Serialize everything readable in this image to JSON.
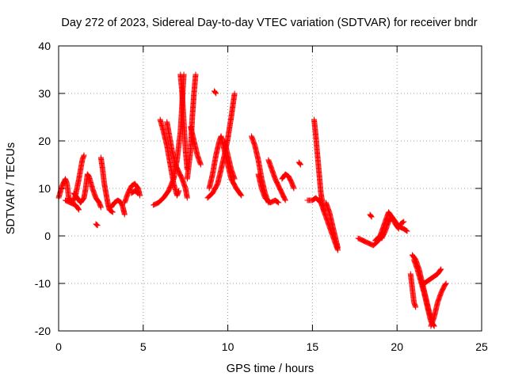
{
  "chart_data": {
    "type": "scatter",
    "title": "Day 272 of 2023, Sidereal Day-to-day VTEC variation (SDTVAR) for receiver bndr",
    "xlabel": "GPS time / hours",
    "ylabel": "SDTVAR / TECUs",
    "xlim": [
      0,
      25
    ],
    "ylim": [
      -20,
      40
    ],
    "xticks": [
      "0",
      "5",
      "10",
      "15",
      "20",
      "25"
    ],
    "yticks": [
      "-20",
      "-10",
      "0",
      "10",
      "20",
      "30",
      "40"
    ],
    "grid": true,
    "marker": "plus",
    "color": "#ff0000",
    "tracks": [
      [
        [
          0.0,
          8
        ],
        [
          0.2,
          10.5
        ],
        [
          0.4,
          12
        ],
        [
          0.5,
          11
        ],
        [
          0.6,
          8
        ],
        [
          0.8,
          7
        ],
        [
          1.0,
          8.5
        ],
        [
          1.2,
          12
        ],
        [
          1.4,
          16
        ],
        [
          1.5,
          17
        ]
      ],
      [
        [
          0.4,
          7.5
        ],
        [
          0.7,
          7
        ],
        [
          1.0,
          6.5
        ],
        [
          1.2,
          5.5
        ]
      ],
      [
        [
          0.9,
          9
        ],
        [
          1.1,
          8
        ],
        [
          1.3,
          7
        ],
        [
          1.5,
          8
        ],
        [
          1.6,
          10
        ],
        [
          1.7,
          13
        ],
        [
          1.8,
          12.5
        ],
        [
          2.0,
          10
        ],
        [
          2.2,
          8
        ],
        [
          2.4,
          7
        ],
        [
          2.5,
          6
        ]
      ],
      [
        [
          2.2,
          2.5
        ],
        [
          2.3,
          2.2
        ]
      ],
      [
        [
          2.5,
          16.5
        ],
        [
          2.6,
          14
        ],
        [
          2.7,
          11
        ],
        [
          2.8,
          9
        ],
        [
          2.9,
          7
        ],
        [
          3.0,
          5.5
        ],
        [
          3.2,
          5
        ]
      ],
      [
        [
          3.1,
          6
        ],
        [
          3.3,
          7
        ],
        [
          3.5,
          7.5
        ],
        [
          3.7,
          7
        ],
        [
          3.8,
          6
        ],
        [
          3.9,
          4.5
        ]
      ],
      [
        [
          3.9,
          7
        ],
        [
          4.1,
          9
        ],
        [
          4.3,
          10.5
        ],
        [
          4.5,
          11
        ],
        [
          4.7,
          10
        ],
        [
          4.8,
          8.5
        ]
      ],
      [
        [
          4.3,
          9
        ],
        [
          4.5,
          9.5
        ],
        [
          4.7,
          9
        ]
      ],
      [
        [
          5.6,
          6.5
        ],
        [
          5.9,
          7
        ],
        [
          6.2,
          8
        ],
        [
          6.5,
          9.5
        ],
        [
          6.8,
          12
        ],
        [
          7.0,
          16
        ],
        [
          7.2,
          22
        ],
        [
          7.3,
          28
        ],
        [
          7.4,
          34
        ]
      ],
      [
        [
          6.0,
          24.5
        ],
        [
          6.2,
          22
        ],
        [
          6.4,
          19
        ],
        [
          6.6,
          15
        ],
        [
          6.8,
          11
        ],
        [
          7.0,
          8.5
        ],
        [
          7.1,
          9.5
        ]
      ],
      [
        [
          6.4,
          24
        ],
        [
          6.5,
          22
        ],
        [
          6.7,
          18
        ],
        [
          6.9,
          15
        ],
        [
          7.1,
          13.5
        ],
        [
          7.3,
          12
        ],
        [
          7.5,
          10
        ],
        [
          7.6,
          8
        ]
      ],
      [
        [
          7.6,
          12
        ],
        [
          7.8,
          18
        ],
        [
          7.9,
          25
        ],
        [
          8.0,
          30
        ],
        [
          8.1,
          34
        ]
      ],
      [
        [
          7.2,
          34
        ],
        [
          7.3,
          30
        ],
        [
          7.4,
          24
        ],
        [
          7.5,
          18
        ],
        [
          7.6,
          14
        ]
      ],
      [
        [
          7.8,
          23
        ],
        [
          8.0,
          20
        ],
        [
          8.2,
          17
        ],
        [
          8.4,
          15
        ]
      ],
      [
        [
          9.2,
          30.5
        ],
        [
          9.3,
          30
        ]
      ],
      [
        [
          8.8,
          8
        ],
        [
          9.1,
          9
        ],
        [
          9.4,
          11
        ],
        [
          9.6,
          14
        ],
        [
          9.8,
          17
        ],
        [
          10.0,
          20.5
        ],
        [
          10.2,
          25
        ],
        [
          10.4,
          30
        ]
      ],
      [
        [
          8.9,
          10
        ],
        [
          9.1,
          13
        ],
        [
          9.3,
          17
        ],
        [
          9.5,
          20
        ],
        [
          9.6,
          21
        ]
      ],
      [
        [
          9.6,
          21
        ],
        [
          9.8,
          18
        ],
        [
          10.0,
          15
        ],
        [
          10.2,
          12
        ],
        [
          10.5,
          10
        ],
        [
          10.8,
          8.5
        ]
      ],
      [
        [
          9.8,
          20
        ],
        [
          10.0,
          17
        ],
        [
          10.2,
          14
        ],
        [
          10.4,
          12
        ]
      ],
      [
        [
          11.4,
          21
        ],
        [
          11.6,
          19
        ],
        [
          11.8,
          16
        ],
        [
          12.0,
          12
        ],
        [
          12.2,
          9
        ],
        [
          12.4,
          7
        ]
      ],
      [
        [
          11.8,
          13
        ],
        [
          12.0,
          10
        ],
        [
          12.2,
          8
        ],
        [
          12.5,
          7
        ],
        [
          12.8,
          7.5
        ],
        [
          13.0,
          7
        ]
      ],
      [
        [
          12.4,
          16
        ],
        [
          12.6,
          14
        ],
        [
          12.8,
          12
        ],
        [
          13.0,
          10.5
        ],
        [
          13.2,
          9
        ],
        [
          13.4,
          7.5
        ]
      ],
      [
        [
          13.2,
          12
        ],
        [
          13.4,
          13
        ],
        [
          13.6,
          12.5
        ],
        [
          13.8,
          11
        ],
        [
          13.9,
          10
        ]
      ],
      [
        [
          14.2,
          15.5
        ],
        [
          14.3,
          15
        ]
      ],
      [
        [
          14.7,
          7.5
        ],
        [
          15.0,
          7.5
        ],
        [
          15.2,
          8
        ],
        [
          15.5,
          7
        ]
      ],
      [
        [
          15.1,
          24.5
        ],
        [
          15.2,
          21
        ],
        [
          15.3,
          17
        ],
        [
          15.4,
          13
        ],
        [
          15.5,
          9
        ],
        [
          15.6,
          7
        ],
        [
          15.7,
          5
        ]
      ],
      [
        [
          15.4,
          8
        ],
        [
          15.6,
          6
        ],
        [
          15.8,
          4
        ],
        [
          16.0,
          2
        ],
        [
          16.2,
          0
        ],
        [
          16.4,
          -2
        ],
        [
          16.5,
          -3
        ]
      ],
      [
        [
          15.8,
          7
        ],
        [
          16.0,
          5
        ],
        [
          16.2,
          2
        ],
        [
          16.4,
          -1
        ],
        [
          16.5,
          -2.5
        ]
      ],
      [
        [
          17.7,
          -0.5
        ],
        [
          18.0,
          -1
        ],
        [
          18.3,
          -1.5
        ],
        [
          18.6,
          -2
        ],
        [
          18.9,
          -1
        ],
        [
          19.1,
          0
        ]
      ],
      [
        [
          18.4,
          4.5
        ],
        [
          18.5,
          4
        ]
      ],
      [
        [
          18.7,
          -1
        ],
        [
          19.0,
          0
        ],
        [
          19.2,
          2
        ],
        [
          19.4,
          4
        ],
        [
          19.5,
          5
        ],
        [
          19.7,
          4
        ],
        [
          19.9,
          2.5
        ],
        [
          20.1,
          1.5
        ]
      ],
      [
        [
          19.1,
          -0.5
        ],
        [
          19.3,
          1
        ],
        [
          19.5,
          3
        ],
        [
          19.7,
          4
        ],
        [
          19.9,
          3
        ],
        [
          20.1,
          2
        ],
        [
          20.4,
          1.5
        ],
        [
          20.6,
          1
        ]
      ],
      [
        [
          20.2,
          2.5
        ],
        [
          20.4,
          3
        ]
      ],
      [
        [
          20.8,
          -8
        ],
        [
          20.9,
          -11
        ],
        [
          21.0,
          -14
        ],
        [
          21.1,
          -15
        ]
      ],
      [
        [
          20.9,
          -4
        ],
        [
          21.1,
          -5
        ],
        [
          21.3,
          -7
        ],
        [
          21.5,
          -10
        ],
        [
          21.7,
          -13
        ],
        [
          21.9,
          -16
        ],
        [
          22.1,
          -18
        ]
      ],
      [
        [
          21.0,
          -5
        ],
        [
          21.2,
          -7
        ],
        [
          21.4,
          -9.5
        ],
        [
          21.6,
          -12
        ],
        [
          21.8,
          -15
        ],
        [
          22.0,
          -18
        ],
        [
          22.2,
          -19
        ]
      ],
      [
        [
          21.6,
          -10
        ],
        [
          21.8,
          -9.5
        ],
        [
          22.0,
          -9
        ],
        [
          22.2,
          -8.5
        ],
        [
          22.4,
          -8
        ],
        [
          22.6,
          -7
        ]
      ],
      [
        [
          22.0,
          -19
        ],
        [
          22.2,
          -17
        ],
        [
          22.4,
          -14
        ],
        [
          22.6,
          -12
        ],
        [
          22.8,
          -10.5
        ],
        [
          22.9,
          -10
        ]
      ]
    ]
  }
}
